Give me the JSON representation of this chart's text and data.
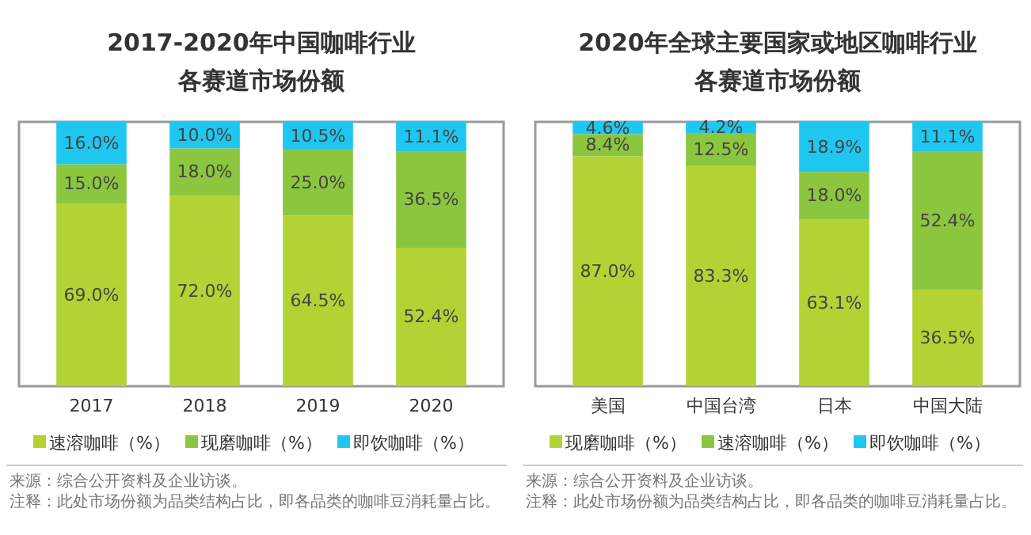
{
  "chart_data": [
    {
      "type": "bar",
      "title": "2017-2020年中国咖啡行业",
      "subtitle": "各赛道市场份额",
      "categories": [
        "2017",
        "2018",
        "2019",
        "2020"
      ],
      "stacked": true,
      "legend": "bottom",
      "series": [
        {
          "name": "速溶咖啡（%）",
          "color": "#b3d335",
          "values": [
            69.0,
            72.0,
            64.5,
            52.4
          ],
          "value_labels": [
            "69.0%",
            "72.0%",
            "64.5%",
            "52.4%"
          ]
        },
        {
          "name": "现磨咖啡（%）",
          "color": "#8cc63f",
          "values": [
            15.0,
            18.0,
            25.0,
            36.5
          ],
          "value_labels": [
            "15.0%",
            "18.0%",
            "25.0%",
            "36.5%"
          ]
        },
        {
          "name": "即饮咖啡（%）",
          "color": "#1fc7f0",
          "values": [
            16.0,
            10.0,
            10.5,
            11.1
          ],
          "value_labels": [
            "16.0%",
            "10.0%",
            "10.5%",
            "11.1%"
          ]
        }
      ],
      "annotations": [
        "来源：综合公开资料及企业访谈。",
        "注释：此处市场份额为品类结构占比，即各品类的咖啡豆消耗量占比。"
      ]
    },
    {
      "type": "bar",
      "title": "2020年全球主要国家或地区咖啡行业",
      "subtitle": "各赛道市场份额",
      "categories": [
        "美国",
        "中国台湾",
        "日本",
        "中国大陆"
      ],
      "stacked": true,
      "legend": "bottom",
      "series": [
        {
          "name": "现磨咖啡（%）",
          "color": "#b3d335",
          "values": [
            87.0,
            83.3,
            63.1,
            36.5
          ],
          "value_labels": [
            "87.0%",
            "83.3%",
            "63.1%",
            "36.5%"
          ]
        },
        {
          "name": "速溶咖啡（%）",
          "color": "#8cc63f",
          "values": [
            8.4,
            12.5,
            18.0,
            52.4
          ],
          "value_labels": [
            "8.4%",
            "12.5%",
            "18.0%",
            "52.4%"
          ]
        },
        {
          "name": "即饮咖啡（%）",
          "color": "#1fc7f0",
          "values": [
            4.6,
            4.2,
            18.9,
            11.1
          ],
          "value_labels": [
            "4.6%",
            "4.2%",
            "18.9%",
            "11.1%"
          ]
        }
      ],
      "annotations": [
        "来源：综合公开资料及企业访谈。",
        "注释：此处市场份额为品类结构占比，即各品类的咖啡豆消耗量占比。"
      ]
    }
  ]
}
